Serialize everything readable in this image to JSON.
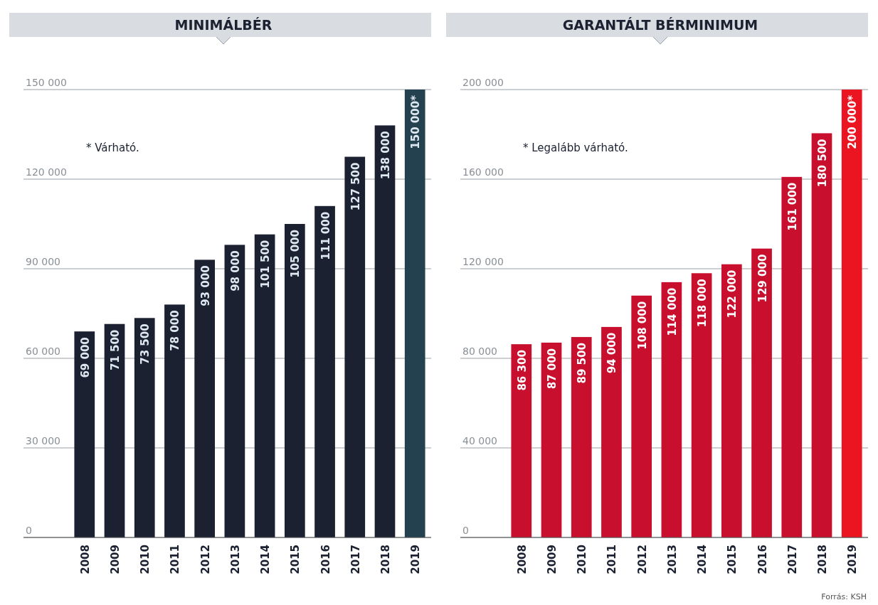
{
  "chart_data": [
    {
      "type": "bar",
      "title": "MINIMÁLBÉR",
      "categories": [
        "2008",
        "2009",
        "2010",
        "2011",
        "2012",
        "2013",
        "2014",
        "2015",
        "2016",
        "2017",
        "2018",
        "2019"
      ],
      "values": [
        69000,
        71500,
        73500,
        78000,
        93000,
        98000,
        101500,
        105000,
        111000,
        127500,
        138000,
        150000
      ],
      "colors": [
        "#1b2130",
        "#1b2130",
        "#1b2130",
        "#1b2130",
        "#1b2130",
        "#1b2130",
        "#1b2130",
        "#1b2130",
        "#1b2130",
        "#1b2130",
        "#1b2130",
        "#244150"
      ],
      "value_labels": [
        "69 000",
        "71 500",
        "73 500",
        "78 000",
        "93 000",
        "98 000",
        "101 500",
        "105 000",
        "111 000",
        "127 500",
        "138 000",
        "150 000*"
      ],
      "ylim": [
        0,
        150000
      ],
      "yticks": [
        {
          "value": 0,
          "label": "0"
        },
        {
          "value": 30000,
          "label": "30 000"
        },
        {
          "value": 60000,
          "label": "60 000"
        },
        {
          "value": 90000,
          "label": "90 000"
        },
        {
          "value": 120000,
          "label": "120 000"
        },
        {
          "value": 150000,
          "label": "150 000"
        }
      ],
      "grid": "y",
      "annotations": [
        "* Várható."
      ]
    },
    {
      "type": "bar",
      "title": "GARANTÁLT BÉRMINIMUM",
      "categories": [
        "2008",
        "2009",
        "2010",
        "2011",
        "2012",
        "2013",
        "2014",
        "2015",
        "2016",
        "2017",
        "2018",
        "2019"
      ],
      "values": [
        86300,
        87000,
        89500,
        94000,
        108000,
        114000,
        118000,
        122000,
        129000,
        161000,
        180500,
        200000
      ],
      "colors": [
        "#c8102e",
        "#c8102e",
        "#c8102e",
        "#c8102e",
        "#c8102e",
        "#c8102e",
        "#c8102e",
        "#c8102e",
        "#c8102e",
        "#c8102e",
        "#c8102e",
        "#ea1520"
      ],
      "value_labels": [
        "86 300",
        "87 000",
        "89 500",
        "94 000",
        "108 000",
        "114 000",
        "118 000",
        "122 000",
        "129 000",
        "161 000",
        "180 500",
        "200 000*"
      ],
      "ylim": [
        0,
        200000
      ],
      "yticks": [
        {
          "value": 0,
          "label": "0"
        },
        {
          "value": 40000,
          "label": "40 000"
        },
        {
          "value": 80000,
          "label": "80 000"
        },
        {
          "value": 120000,
          "label": "120 000"
        },
        {
          "value": 160000,
          "label": "160 000"
        },
        {
          "value": 200000,
          "label": "200 000"
        }
      ],
      "grid": "y",
      "annotations": [
        "* Legalább várható.",
        "Forrás: KSH"
      ]
    }
  ]
}
